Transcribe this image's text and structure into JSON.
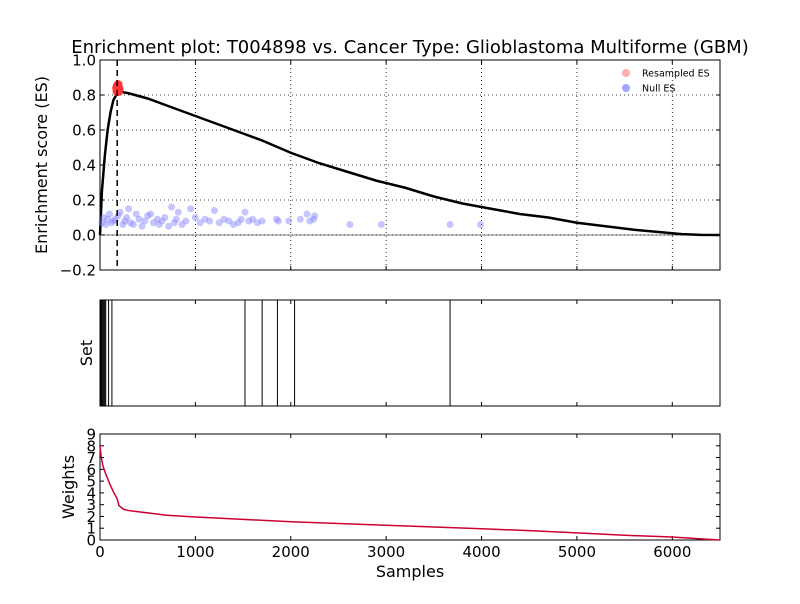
{
  "chart_data": {
    "type": "line",
    "title": "Enrichment plot: T004898 vs. Cancer Type: Glioblastoma Multiforme (GBM)",
    "xlabel": "Samples",
    "xlim": [
      0,
      6500
    ],
    "x_ticks": [
      "0",
      "1000",
      "2000",
      "3000",
      "4000",
      "5000",
      "6000"
    ],
    "colors": {
      "es_line": "#000000",
      "resampled": "#ff3333",
      "null": "#8080ff",
      "weights": "#cc0033",
      "set_line": "#000000"
    },
    "panels": [
      {
        "name": "enrichment",
        "ylabel": "Enrichment score (ES)",
        "ylim": [
          -0.2,
          1.0
        ],
        "y_ticks": [
          "−0.2",
          "0.0",
          "0.2",
          "0.4",
          "0.6",
          "0.8",
          "1.0"
        ],
        "grid": true,
        "legend": {
          "position": "top-right",
          "entries": [
            {
              "label": "Resampled ES",
              "color": "#ff9999"
            },
            {
              "label": "Null ES",
              "color": "#8f8fff"
            }
          ]
        },
        "vline_x": 180,
        "series": [
          {
            "kind": "line",
            "x": [
              0,
              20,
              50,
              80,
              110,
              140,
              170,
              200,
              300,
              500,
              700,
              900,
              1100,
              1300,
              1500,
              1700,
              2000,
              2300,
              2600,
              2900,
              3200,
              3500,
              3800,
              4100,
              4400,
              4700,
              5000,
              5300,
              5600,
              5900,
              6100,
              6300,
              6500
            ],
            "y": [
              0.0,
              0.25,
              0.45,
              0.6,
              0.7,
              0.77,
              0.8,
              0.82,
              0.81,
              0.78,
              0.74,
              0.7,
              0.66,
              0.62,
              0.58,
              0.54,
              0.47,
              0.41,
              0.36,
              0.31,
              0.27,
              0.22,
              0.18,
              0.15,
              0.12,
              0.1,
              0.07,
              0.05,
              0.03,
              0.015,
              0.005,
              0.001,
              0.0
            ]
          },
          {
            "kind": "scatter",
            "x": [
              175,
              180,
              185,
              190,
              195,
              200,
              178,
              188,
              195,
              182
            ],
            "y": [
              0.84,
              0.85,
              0.83,
              0.86,
              0.84,
              0.83,
              0.82,
              0.85,
              0.82,
              0.83
            ]
          },
          {
            "kind": "scatter",
            "x": [
              20,
              40,
              60,
              80,
              100,
              120,
              140,
              160,
              190,
              210,
              240,
              260,
              280,
              300,
              320,
              350,
              380,
              410,
              440,
              470,
              500,
              530,
              560,
              600,
              620,
              650,
              680,
              720,
              750,
              780,
              800,
              820,
              860,
              900,
              950,
              1000,
              1050,
              1100,
              1150,
              1200,
              1250,
              1300,
              1350,
              1400,
              1450,
              1480,
              1520,
              1560,
              1600,
              1650,
              1700,
              1850,
              1870,
              1980,
              2100,
              2170,
              2200,
              2240,
              2250,
              2620,
              2950,
              3670,
              3990
            ],
            "y": [
              0.07,
              0.1,
              0.06,
              0.09,
              0.12,
              0.07,
              0.08,
              0.09,
              0.11,
              0.13,
              0.06,
              0.08,
              0.1,
              0.15,
              0.07,
              0.06,
              0.12,
              0.09,
              0.05,
              0.08,
              0.11,
              0.12,
              0.07,
              0.09,
              0.06,
              0.08,
              0.1,
              0.05,
              0.16,
              0.07,
              0.09,
              0.13,
              0.06,
              0.08,
              0.15,
              0.1,
              0.07,
              0.09,
              0.08,
              0.14,
              0.07,
              0.09,
              0.08,
              0.06,
              0.07,
              0.09,
              0.13,
              0.08,
              0.09,
              0.07,
              0.08,
              0.09,
              0.08,
              0.08,
              0.09,
              0.12,
              0.08,
              0.09,
              0.11,
              0.06,
              0.06,
              0.06,
              0.06
            ]
          }
        ]
      },
      {
        "name": "set",
        "ylabel": "Set",
        "ylim": [
          0,
          1
        ],
        "series": [
          {
            "kind": "ticks",
            "x": [
              10,
              20,
              30,
              40,
              50,
              60,
              90,
              125,
              1520,
              1700,
              1860,
              2040,
              3670
            ]
          }
        ]
      },
      {
        "name": "weights",
        "ylabel": "Weights",
        "ylim": [
          0,
          9
        ],
        "y_ticks": [
          "0",
          "1",
          "2",
          "3",
          "4",
          "5",
          "6",
          "7",
          "8",
          "9"
        ],
        "series": [
          {
            "kind": "line",
            "x": [
              0,
              10,
              30,
              60,
              100,
              140,
              180,
              200,
              250,
              300,
              400,
              500,
              700,
              1000,
              1500,
              2000,
              2500,
              3000,
              3500,
              4000,
              4500,
              5000,
              5500,
              6000,
              6300,
              6500
            ],
            "y": [
              8,
              7.2,
              6.3,
              5.6,
              4.8,
              4.1,
              3.5,
              2.9,
              2.6,
              2.5,
              2.4,
              2.3,
              2.1,
              1.95,
              1.75,
              1.55,
              1.4,
              1.25,
              1.1,
              0.95,
              0.8,
              0.6,
              0.4,
              0.25,
              0.1,
              0.0
            ]
          }
        ]
      }
    ]
  }
}
